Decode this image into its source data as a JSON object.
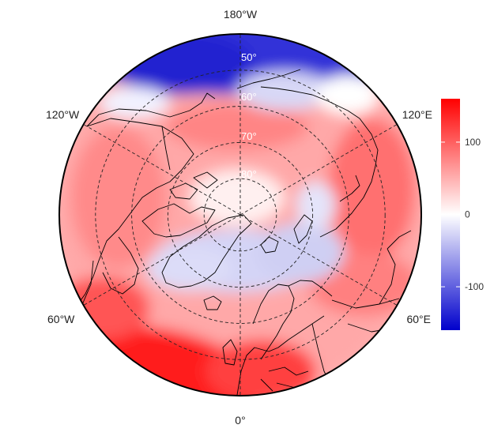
{
  "map": {
    "projection": "north-polar-stereographic",
    "outer_latitude": 40,
    "longitude_labels": [
      {
        "text": "180°W",
        "lon": 180
      },
      {
        "text": "120°E",
        "lon": 120
      },
      {
        "text": "60°E",
        "lon": 60
      },
      {
        "text": "0°",
        "lon": 0
      },
      {
        "text": "60°W",
        "lon": -60
      },
      {
        "text": "120°W",
        "lon": -120
      }
    ],
    "latitude_labels": [
      {
        "text": "50°",
        "lat": 50
      },
      {
        "text": "60°",
        "lat": 60
      },
      {
        "text": "70°",
        "lat": 70
      },
      {
        "text": "80°",
        "lat": 80
      }
    ],
    "field_colors": {
      "positive": "#ff0000",
      "neutral": "#ffffff",
      "negative": "#0000cc"
    }
  },
  "colorbar": {
    "min": -160,
    "max": 160,
    "ticks": [
      {
        "value": 100,
        "label": "100"
      },
      {
        "value": 0,
        "label": "0"
      },
      {
        "value": -100,
        "label": "-100"
      }
    ]
  }
}
